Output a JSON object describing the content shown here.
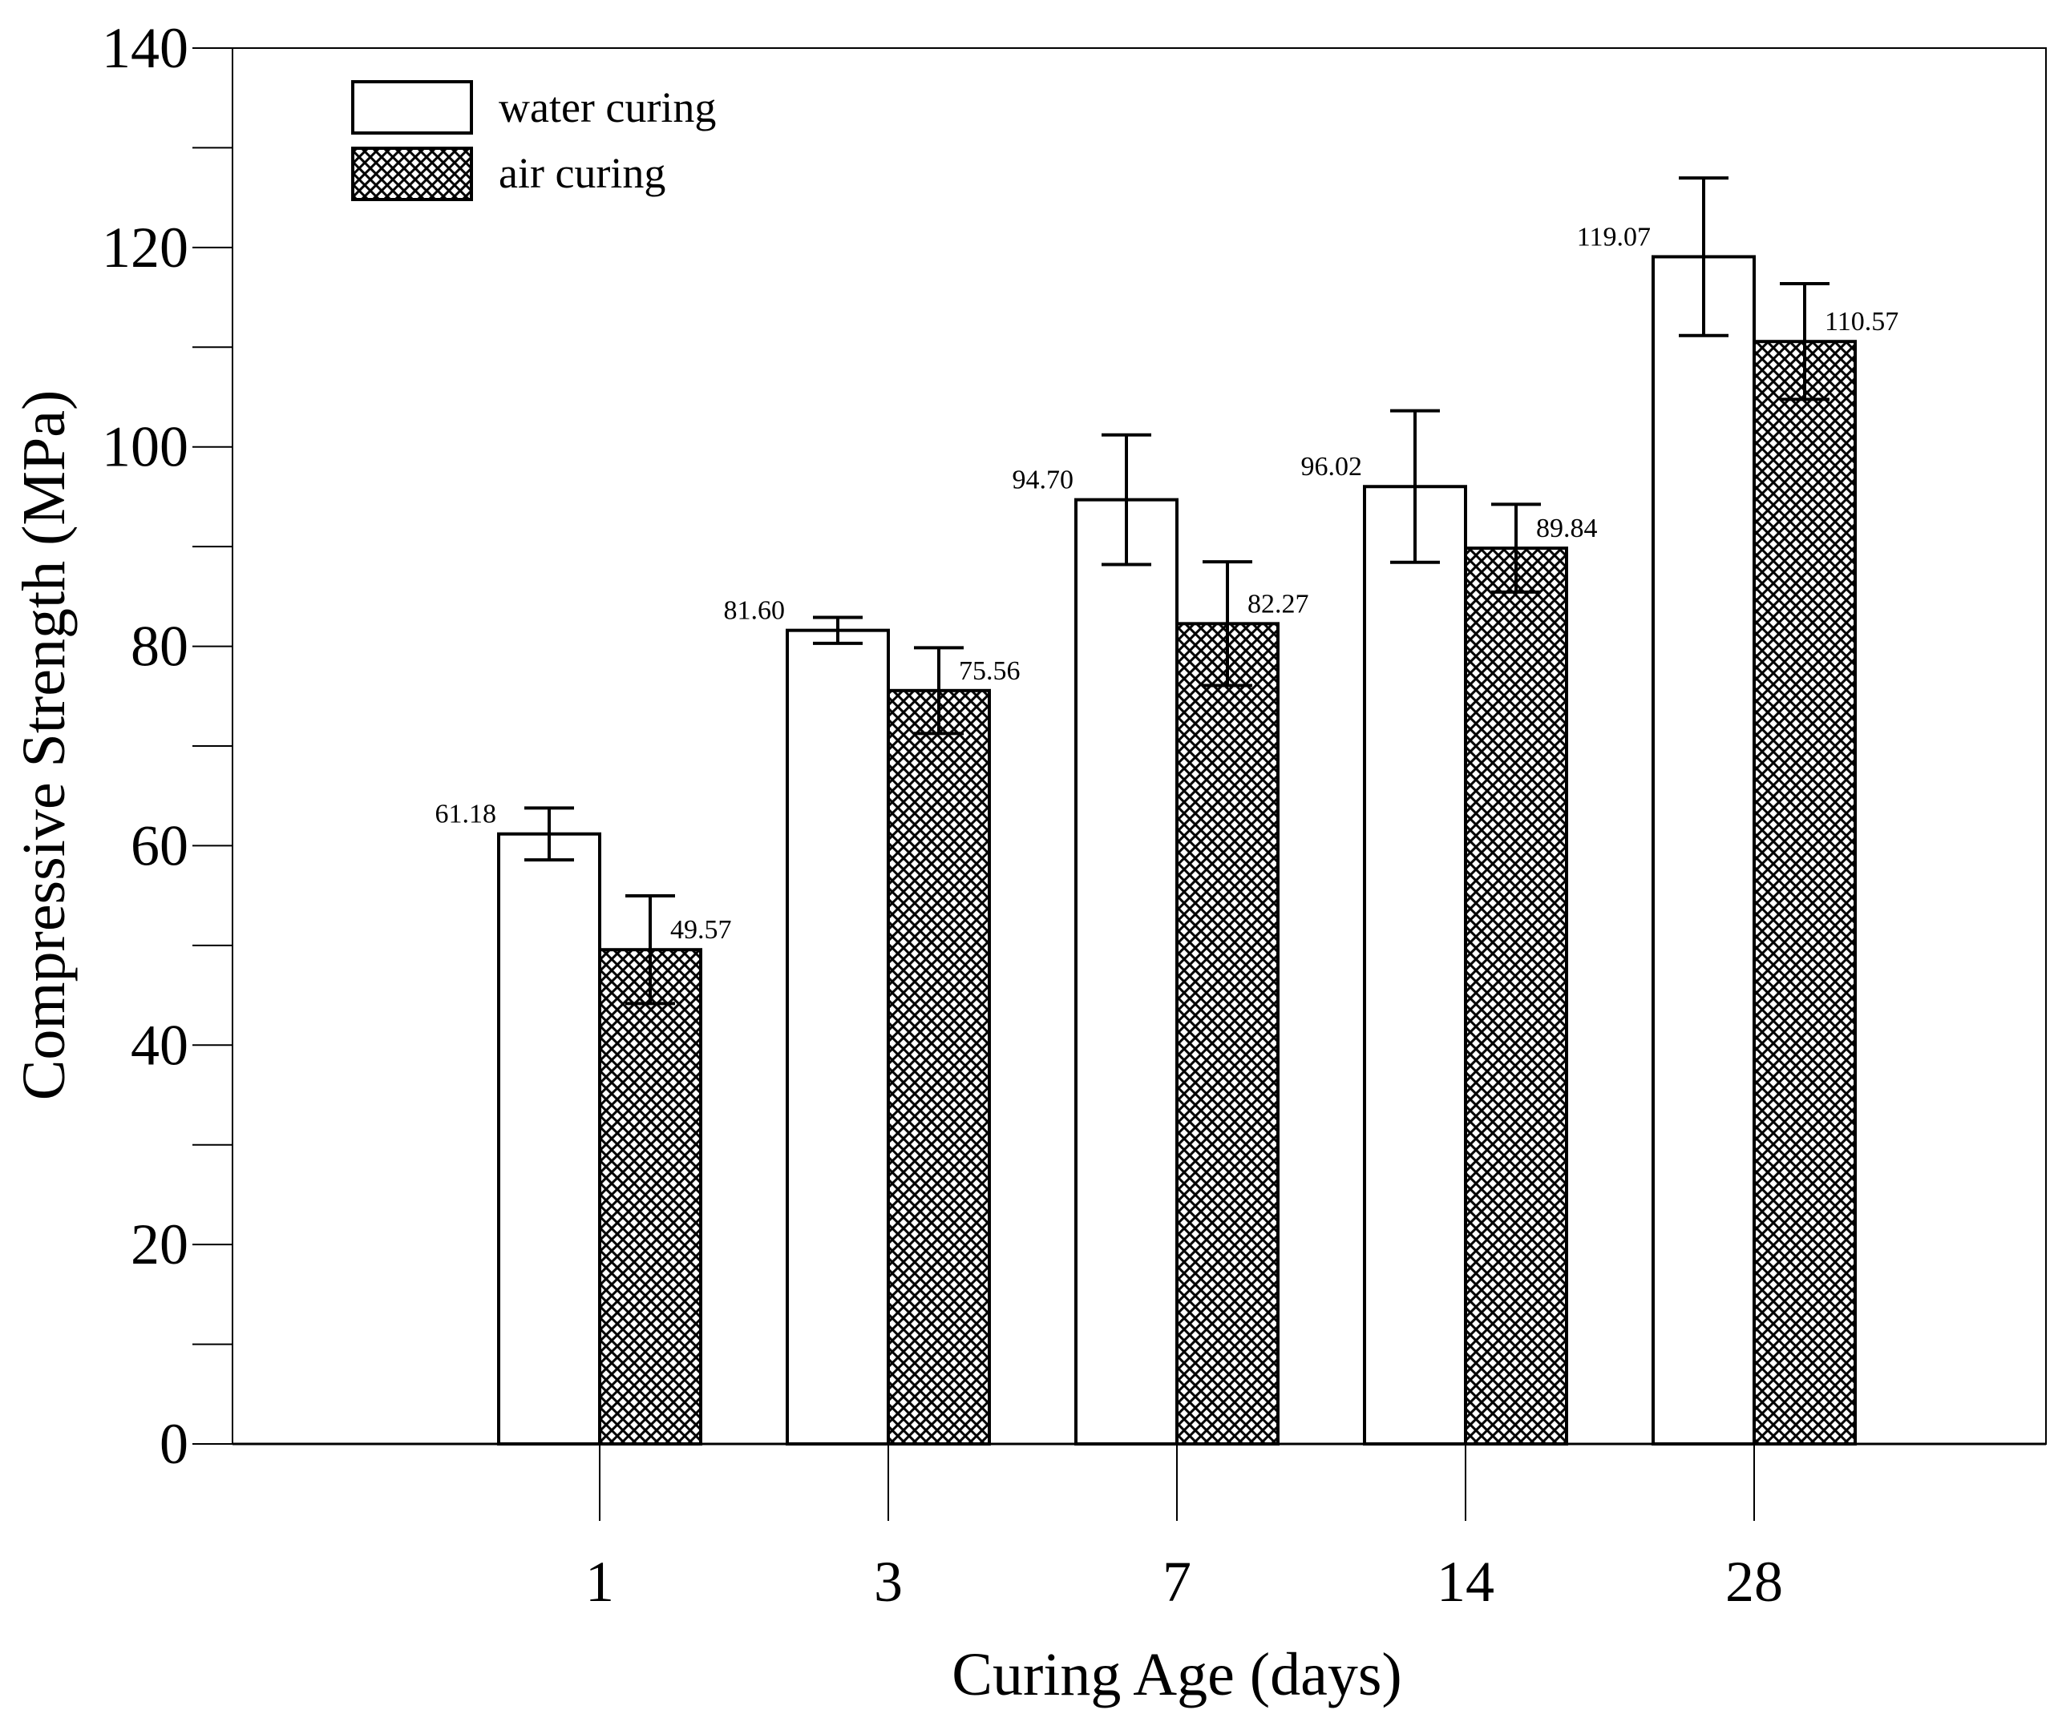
{
  "chart_data": {
    "type": "bar",
    "title": "",
    "xlabel": "Curing Age (days)",
    "ylabel": "Compressive Strength (MPa)",
    "ylim": [
      0,
      140
    ],
    "yticks": [
      0,
      20,
      40,
      60,
      80,
      100,
      120,
      140
    ],
    "categories": [
      "1",
      "3",
      "7",
      "14",
      "28"
    ],
    "series": [
      {
        "name": "water curing",
        "pattern": "none",
        "values": [
          61.18,
          81.6,
          94.7,
          96.02,
          119.07
        ],
        "labels": [
          "61.18",
          "81.60",
          "94.70",
          "96.02",
          "119.07"
        ],
        "error": [
          2.6,
          1.3,
          6.5,
          7.6,
          7.9
        ]
      },
      {
        "name": "air curing",
        "pattern": "crosshatch",
        "values": [
          49.57,
          75.56,
          82.27,
          89.84,
          110.57
        ],
        "labels": [
          "49.57",
          "75.56",
          "82.27",
          "89.84",
          "110.57"
        ],
        "error": [
          5.4,
          4.3,
          6.2,
          4.4,
          5.8
        ]
      }
    ],
    "grid": false,
    "legend_position": "top-left"
  },
  "colors": {
    "axis": "#000000",
    "bar_fill": "#ffffff",
    "hatch": "#000000",
    "background": "#ffffff"
  }
}
